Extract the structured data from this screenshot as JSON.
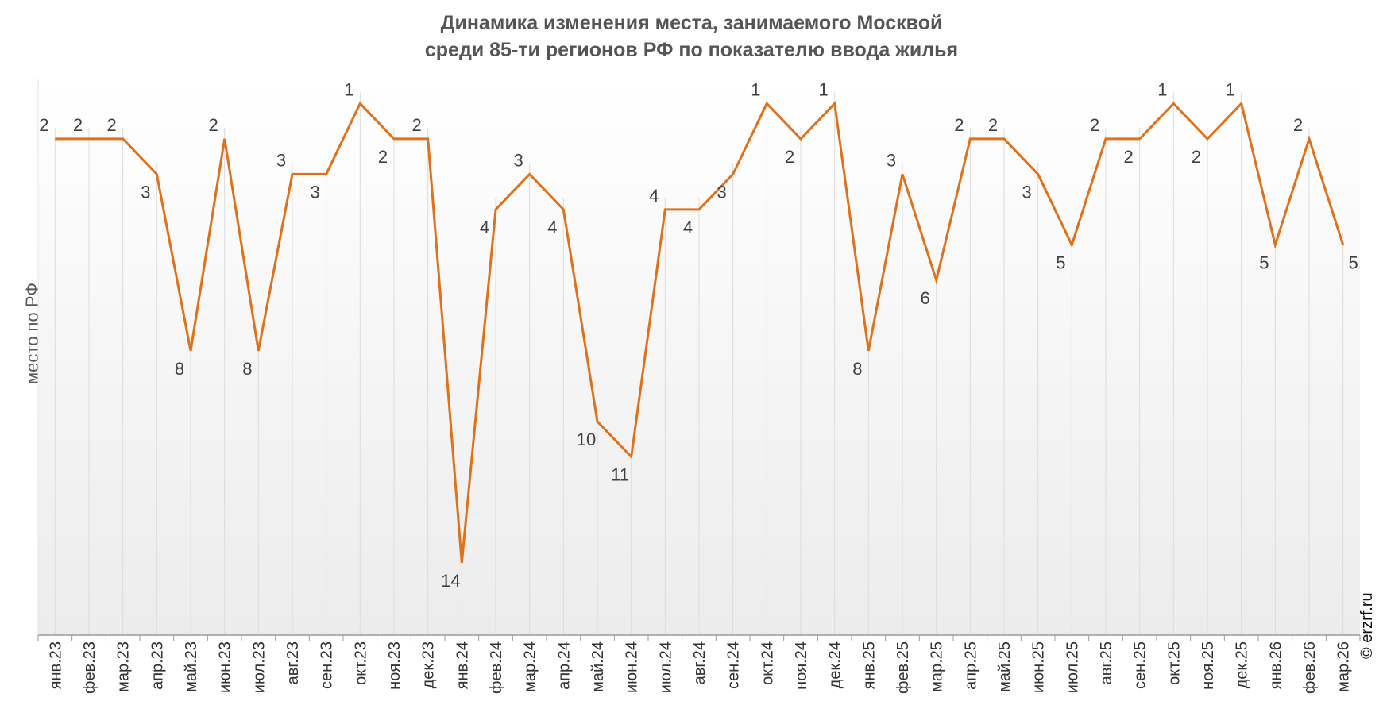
{
  "chart_data": {
    "type": "line",
    "title_line1": "Динамика изменения места, занимаемого Москвой",
    "title_line2": "среди 85-ти регионов РФ по показателю ввода жилья",
    "ylabel": "место по РФ",
    "xlabel": "",
    "y_reversed": true,
    "ylim": [
      16,
      0
    ],
    "grid": "vertical",
    "categories": [
      "янв.23",
      "фев.23",
      "мар.23",
      "апр.23",
      "май.23",
      "июн.23",
      "июл.23",
      "авг.23",
      "сен.23",
      "окт.23",
      "ноя.23",
      "дек.23",
      "янв.24",
      "фев.24",
      "мар.24",
      "апр.24",
      "май.24",
      "июн.24",
      "июл.24",
      "авг.24",
      "сен.24",
      "окт.24",
      "ноя.24",
      "дек.24",
      "янв.25",
      "фев.25",
      "мар.25",
      "апр.25",
      "май.25",
      "июн.25",
      "июл.25",
      "авг.25",
      "сен.25",
      "окт.25",
      "ноя.25",
      "дек.25",
      "янв.26",
      "фев.26",
      "мар.26"
    ],
    "series": [
      {
        "values": [
          2,
          2,
          2,
          3,
          8,
          2,
          8,
          3,
          3,
          1,
          2,
          2,
          14,
          4,
          3,
          4,
          10,
          11,
          4,
          4,
          3,
          1,
          2,
          1,
          8,
          3,
          6,
          2,
          2,
          3,
          5,
          2,
          2,
          1,
          2,
          1,
          5,
          2,
          5
        ],
        "color": "#e0701a"
      }
    ]
  },
  "watermark": "© erzrf.ru"
}
